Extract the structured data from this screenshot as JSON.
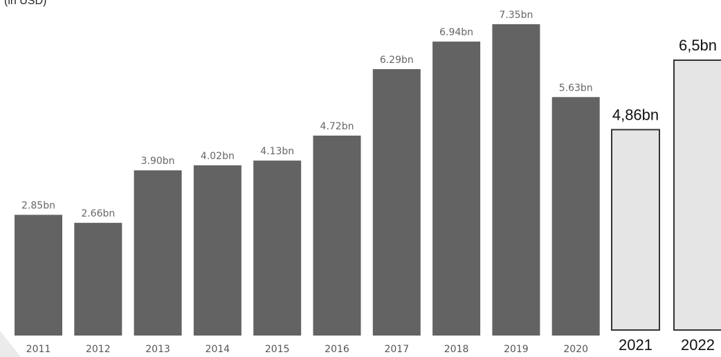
{
  "chart_data": {
    "type": "bar",
    "subtitle": "(in USD)",
    "categories": [
      "2011",
      "2012",
      "2013",
      "2014",
      "2015",
      "2016",
      "2017",
      "2018",
      "2019",
      "2020",
      "2021",
      "2022"
    ],
    "values": [
      2.85,
      2.66,
      3.9,
      4.02,
      4.13,
      4.72,
      6.29,
      6.94,
      7.35,
      5.63,
      4.86,
      6.5
    ],
    "value_labels": [
      "2.85bn",
      "2.66bn",
      "3.90bn",
      "4.02bn",
      "4.13bn",
      "4.72bn",
      "6.29bn",
      "6.94bn",
      "7.35bn",
      "5.63bn",
      "4,86bn",
      "6,5bn"
    ],
    "forecast": [
      false,
      false,
      false,
      false,
      false,
      false,
      false,
      false,
      false,
      false,
      true,
      true
    ],
    "ylim": [
      0,
      7.35
    ],
    "grid": false,
    "colors": {
      "actual_bar": "#636363",
      "forecast_fill": "#e5e5e5",
      "forecast_stroke": "#333333"
    }
  }
}
